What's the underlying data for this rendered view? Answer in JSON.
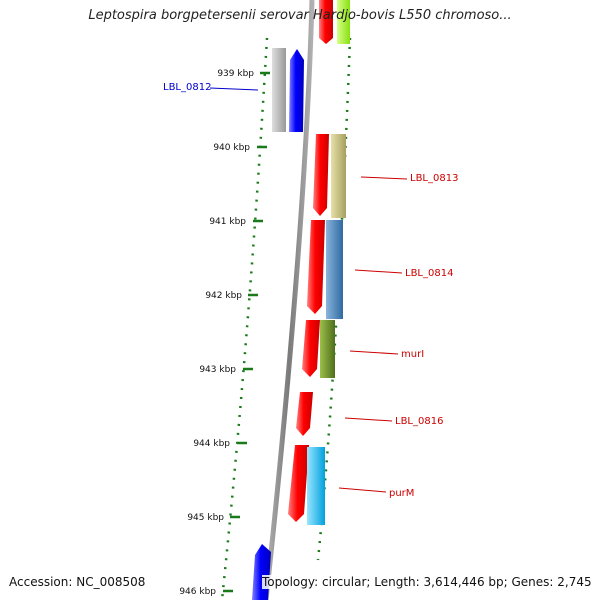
{
  "title": "Leptospira borgpetersenii serovar Hardjo-bovis L550 chromoso...",
  "accession_text": "Accession: NC_008508",
  "summary_text": "Topology: circular; Length: 3,614,446 bp; Genes: 2,745",
  "ticks": [
    "939 kbp",
    "940 kbp",
    "941 kbp",
    "942 kbp",
    "943 kbp",
    "944 kbp",
    "945 kbp",
    "946 kbp"
  ],
  "genes": [
    {
      "name": "LBL_0812",
      "label_color": "#0000cc"
    },
    {
      "name": "LBL_0813",
      "label_color": "#cc0000"
    },
    {
      "name": "LBL_0814",
      "label_color": "#cc0000"
    },
    {
      "name": "murI",
      "label_color": "#cc0000"
    },
    {
      "name": "LBL_0816",
      "label_color": "#cc0000"
    },
    {
      "name": "purM",
      "label_color": "#cc0000"
    }
  ],
  "colors": {
    "forward_strand": "#0000ff",
    "reverse_strand": "#ff0000",
    "tick": "#1a7a1a",
    "backbone": "#8a8a8a"
  }
}
